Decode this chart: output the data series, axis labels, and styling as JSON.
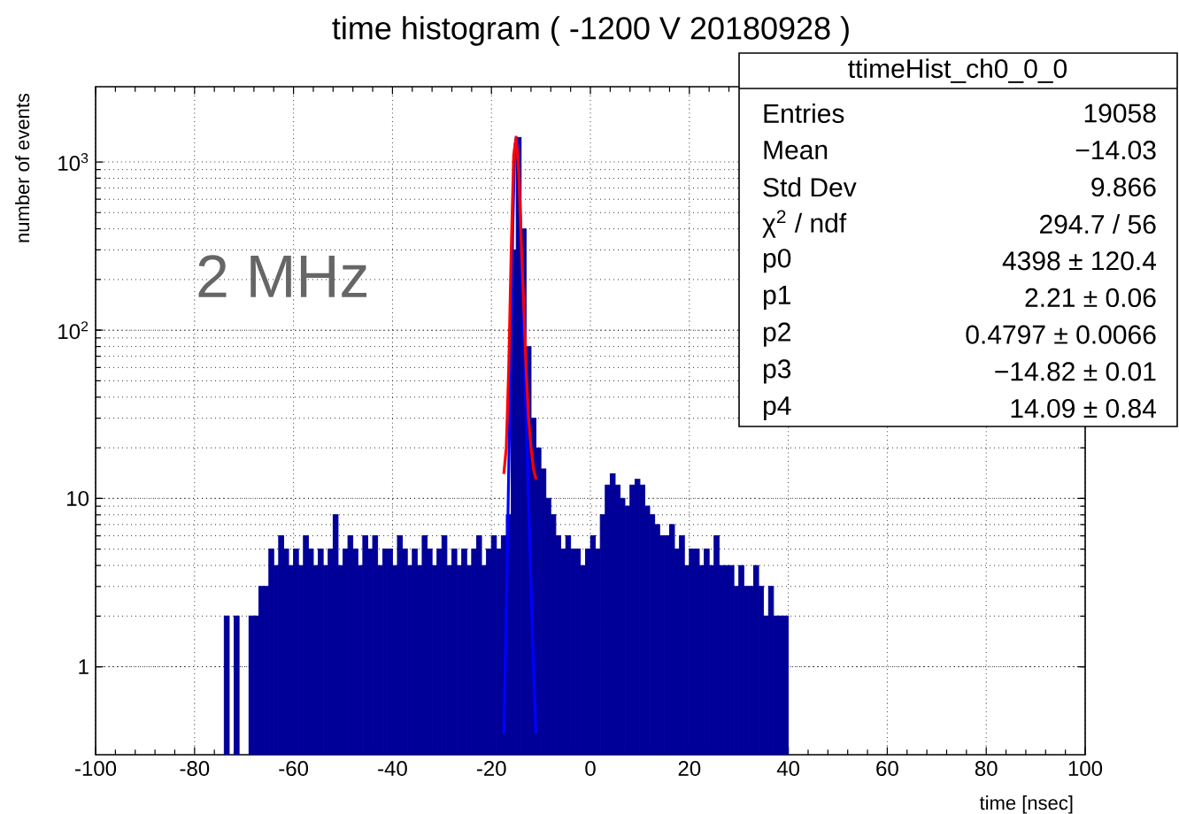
{
  "chart_data": {
    "type": "histogram",
    "title": "time histogram ( -1200 V 20180928 )",
    "xlabel": "time [nsec]",
    "ylabel": "number of events",
    "log": "y",
    "grid": true,
    "xlim": [
      -100,
      100
    ],
    "xticks": [
      -100,
      -80,
      -60,
      -40,
      -20,
      0,
      20,
      40,
      60,
      80,
      100
    ],
    "ylim": [
      0.3,
      2800
    ],
    "yticks": [
      1,
      10,
      {
        "value": 100,
        "label": "10$^{2}$"
      },
      {
        "value": 1000,
        "label": "10$^{3}$"
      }
    ],
    "bins": [
      -75,
      -74,
      -73,
      -72,
      -71,
      -70,
      -69,
      -68,
      -67,
      -66,
      -65,
      -64,
      -63,
      -62,
      -61,
      -60,
      -59,
      -58,
      -57,
      -56,
      -55,
      -54,
      -53,
      -52,
      -51,
      -50,
      -49,
      -48,
      -47,
      -46,
      -45,
      -44,
      -43,
      -42,
      -41,
      -40,
      -39,
      -38,
      -37,
      -36,
      -35,
      -34,
      -33,
      -32,
      -31,
      -30,
      -29,
      -28,
      -27,
      -26,
      -25,
      -24,
      -23,
      -22,
      -21,
      -20,
      -19,
      -18,
      -17,
      -16,
      -15,
      -14,
      -13,
      -12,
      -11,
      -10,
      -9,
      -8,
      -7,
      -6,
      -5,
      -4,
      -3,
      -2,
      -1,
      0,
      1,
      2,
      3,
      4,
      5,
      6,
      7,
      8,
      9,
      10,
      11,
      12,
      13,
      14,
      15,
      16,
      17,
      18,
      19,
      20,
      21,
      22,
      23,
      24,
      25,
      26,
      27,
      28,
      29,
      30,
      31,
      32,
      33,
      34,
      35,
      36,
      37,
      38,
      39,
      40
    ],
    "series": [
      {
        "color": "#000099",
        "values": [
          null,
          2,
          null,
          2,
          null,
          null,
          2,
          2,
          3,
          3,
          5,
          4,
          6,
          5,
          4,
          5,
          4,
          6,
          5,
          4,
          5,
          4,
          5,
          8,
          4,
          5,
          6,
          5,
          4,
          6,
          5,
          6,
          4,
          5,
          5,
          4,
          6,
          5,
          4,
          5,
          4,
          6,
          5,
          4,
          5,
          6,
          4,
          5,
          4,
          5,
          4,
          5,
          6,
          4,
          5,
          6,
          5,
          6,
          8,
          300,
          1400,
          400,
          80,
          30,
          20,
          15,
          10,
          8,
          6,
          5,
          6,
          5,
          5,
          4,
          5,
          6,
          5,
          8,
          12,
          14,
          12,
          10,
          9,
          12,
          13,
          12,
          9,
          8,
          7,
          6,
          6,
          7,
          5,
          6,
          4,
          5,
          5,
          4,
          5,
          4,
          6,
          4,
          4,
          4,
          3,
          4,
          3,
          3,
          4,
          3,
          2,
          3,
          2,
          2,
          2
        ]
      },
      {
        "type": "line",
        "color": "#0000ff",
        "x": [
          -17.5,
          -17,
          -16.5,
          -16,
          -15.7,
          -15.3,
          -15,
          -14.7,
          -14.3,
          -14,
          -13.5,
          -13,
          -12.5,
          -12,
          -11.5,
          -11
        ],
        "values": [
          0.4,
          2,
          15,
          100,
          400,
          1200,
          1400,
          1300,
          700,
          300,
          100,
          30,
          10,
          3,
          1,
          0.4
        ]
      },
      {
        "type": "line",
        "color": "#ff0000",
        "x": [
          -17.5,
          -17,
          -16.5,
          -16,
          -15.5,
          -15,
          -14.5,
          -14,
          -13.5,
          -13,
          -12.5,
          -12,
          -11.5,
          -11
        ],
        "values": [
          14,
          20,
          60,
          300,
          1100,
          1400,
          900,
          350,
          150,
          60,
          30,
          20,
          15,
          13
        ]
      }
    ],
    "annotations": [
      "2 MHz",
      "ttimeHist_ch0_0_0",
      "Entries",
      "19058",
      "Mean",
      "−14.03",
      "Std Dev",
      "9.866",
      "χ$^{2}$ / ndf",
      "294.7 / 56",
      "p0",
      "4398 ± 120.4",
      "p1",
      "2.21 ± 0.06",
      "p2",
      "0.4797 ± 0.0066",
      "p3",
      "−14.82 ± 0.01",
      "p4",
      "14.09 ± 0.84"
    ]
  }
}
